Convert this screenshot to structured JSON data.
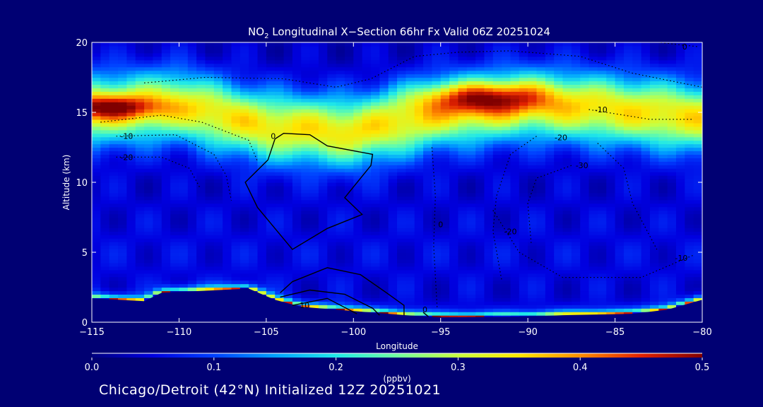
{
  "chart_data": {
    "type": "heatmap",
    "title_prefix": "NO",
    "title_subscript": "2",
    "title_rest": " Longitudinal X−Section 66hr  Fx Valid 06Z 20251024",
    "xlabel": "Longitude",
    "ylabel": "Altitude (km)",
    "xlim": [
      -115,
      -80
    ],
    "ylim": [
      0,
      20
    ],
    "xticks": [
      -115,
      -110,
      -105,
      -100,
      -95,
      -90,
      -85,
      -80
    ],
    "xtick_labels": [
      "−115",
      "−110",
      "−105",
      "−100",
      "−95",
      "−90",
      "−85",
      "−80"
    ],
    "yticks": [
      0,
      5,
      10,
      15,
      20
    ],
    "ytick_labels": [
      "0",
      "5",
      "10",
      "15",
      "20"
    ],
    "colorbar": {
      "range": [
        0.0,
        0.5
      ],
      "ticks": [
        0.0,
        0.1,
        0.2,
        0.3,
        0.4,
        0.5
      ],
      "tick_labels": [
        "0.0",
        "0.1",
        "0.2",
        "0.3",
        "0.4",
        "0.5"
      ],
      "label": "(ppbv)"
    },
    "colors": {
      "background": "#000073",
      "terrain": "#000080",
      "colormap": [
        "#00007f",
        "#0000e0",
        "#0040ff",
        "#00a0ff",
        "#20e8e8",
        "#70ffa0",
        "#c8ff40",
        "#ffe600",
        "#ff8c00",
        "#e02000",
        "#800000"
      ]
    },
    "terrain_km": {
      "x": [
        -115,
        -112,
        -111,
        -106,
        -104.5,
        -103,
        -100,
        -97,
        -95,
        -90,
        -88,
        -84,
        -82,
        -80
      ],
      "y": [
        1.7,
        1.5,
        2.1,
        2.4,
        1.6,
        1.1,
        0.8,
        0.5,
        0.35,
        0.4,
        0.5,
        0.6,
        0.9,
        1.6
      ]
    },
    "bands": [
      {
        "name": "upper",
        "center": [
          [
            -115,
            15.2
          ],
          [
            -110,
            15.5
          ],
          [
            -105,
            14.0
          ],
          [
            -100,
            13.6
          ],
          [
            -95,
            15.0
          ],
          [
            -90,
            15.6
          ],
          [
            -85,
            15.2
          ],
          [
            -80,
            14.6
          ]
        ],
        "width": 5.5,
        "peak": 0.31
      },
      {
        "name": "tropopause-core-west",
        "x": -114,
        "y": 15.4,
        "sx": 2.0,
        "sy": 0.6,
        "peak": 0.18
      },
      {
        "name": "tropopause-core-mid",
        "x": -92.5,
        "y": 16.1,
        "sx": 2.5,
        "sy": 0.8,
        "peak": 0.19
      },
      {
        "name": "surface-layer",
        "peak": 0.5
      }
    ],
    "contour_labels": [
      {
        "text": "-10",
        "lon": -113.0,
        "alt": 13.3
      },
      {
        "text": "-20",
        "lon": -113.0,
        "alt": 11.8
      },
      {
        "text": "-10",
        "lon": -85.8,
        "alt": 15.2
      },
      {
        "text": "-20",
        "lon": -88.1,
        "alt": 13.2
      },
      {
        "text": "-30",
        "lon": -86.9,
        "alt": 11.2
      },
      {
        "text": "-20",
        "lon": -91.0,
        "alt": 6.5
      },
      {
        "text": "-10",
        "lon": -81.2,
        "alt": 4.6
      },
      {
        "text": "0",
        "lon": -95.0,
        "alt": 7.0
      },
      {
        "text": "0",
        "lon": -81.0,
        "alt": 19.7
      },
      {
        "text": "0",
        "lon": -104.6,
        "alt": 13.3
      },
      {
        "text": "0",
        "lon": -95.9,
        "alt": 0.9
      },
      {
        "text": "10",
        "lon": -102.8,
        "alt": 1.2
      }
    ]
  },
  "footer": "Chicago/Detroit (42°N) Initialized 12Z 20251021"
}
